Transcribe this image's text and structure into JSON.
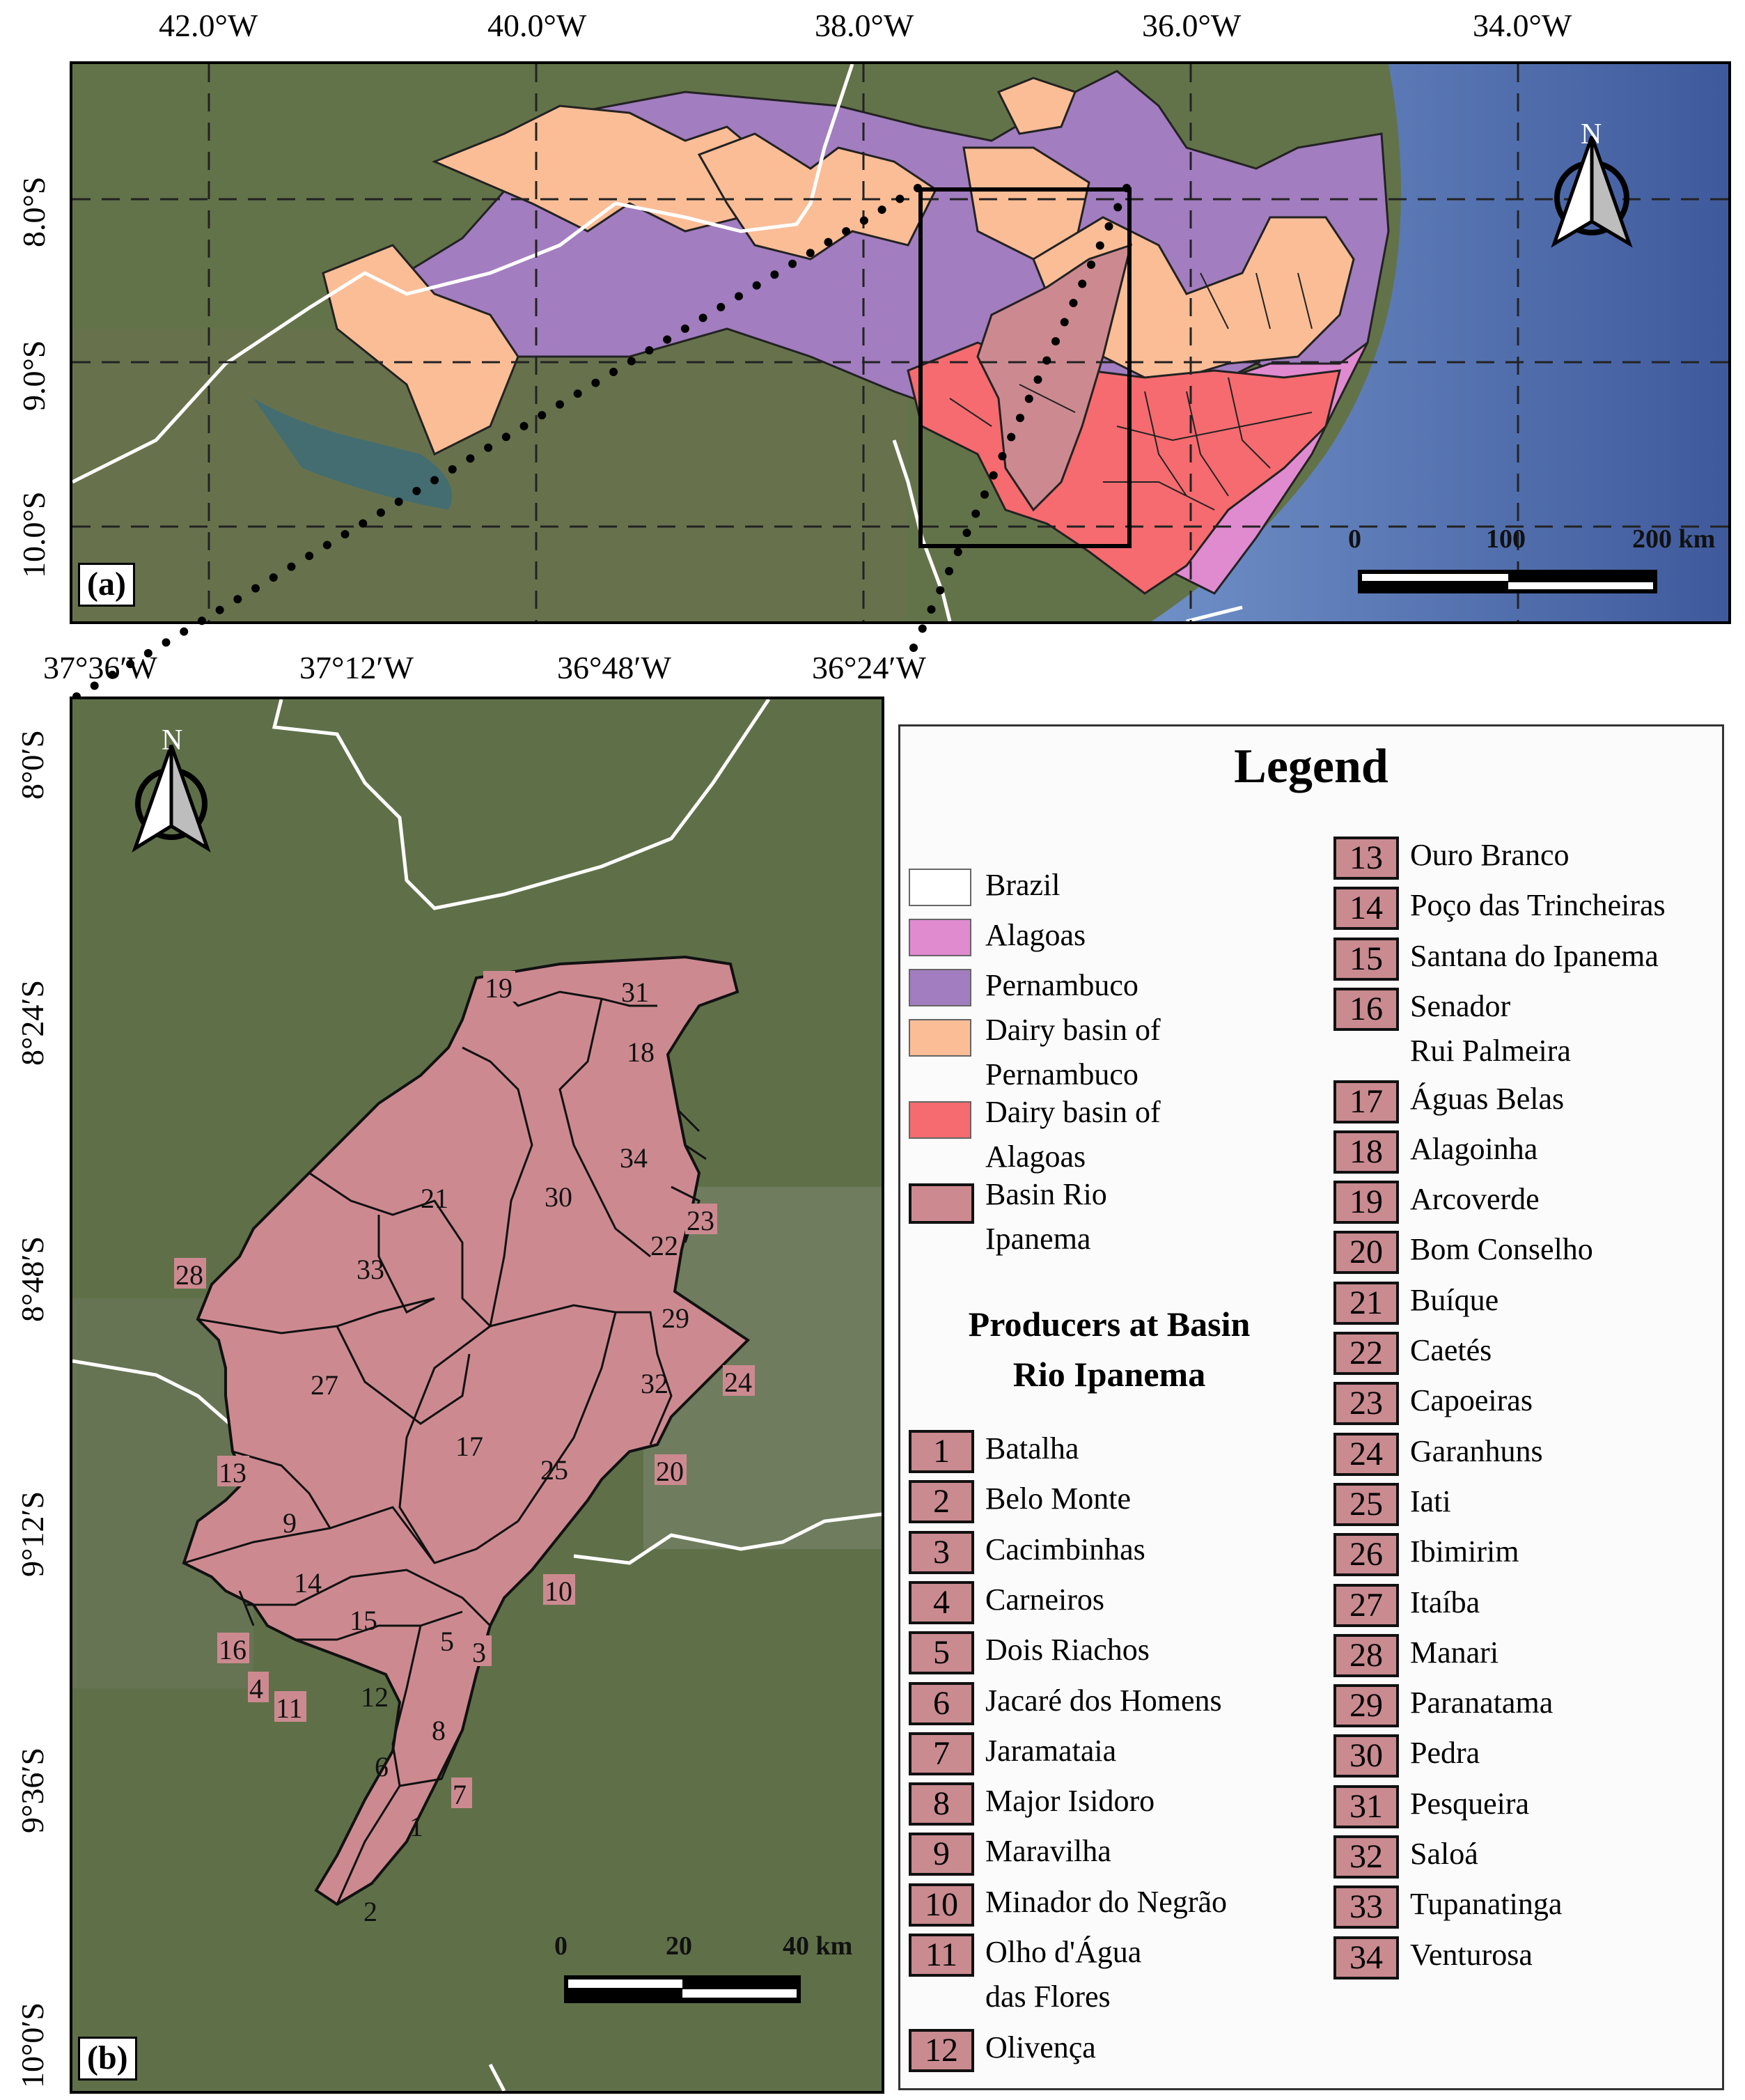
{
  "panel_a": {
    "tag": "(a)",
    "lon_ticks": [
      "42.0°W",
      "40.0°W",
      "38.0°W",
      "36.0°W",
      "34.0°W"
    ],
    "lat_ticks": [
      "8.0°S",
      "9.0°S",
      "10.0°S"
    ],
    "north": "N",
    "scale": {
      "labels": [
        "0",
        "100",
        "200 km"
      ]
    }
  },
  "panel_b": {
    "tag": "(b)",
    "lon_ticks": [
      "37°36′W",
      "37°12′W",
      "36°48′W",
      "36°24′W"
    ],
    "lat_ticks": [
      "8°0′S",
      "8°24′S",
      "8°48′S",
      "9°12′S",
      "9°36′S",
      "10°0′S"
    ],
    "north": "N",
    "scale": {
      "labels": [
        "0",
        "20",
        "40 km"
      ]
    },
    "region_numbers": [
      "19",
      "31",
      "18",
      "34",
      "21",
      "30",
      "23",
      "22",
      "33",
      "28",
      "29",
      "27",
      "32",
      "24",
      "17",
      "25",
      "20",
      "13",
      "9",
      "14",
      "15",
      "10",
      "16",
      "5",
      "3",
      "4",
      "11",
      "12",
      "8",
      "6",
      "7",
      "1",
      "2"
    ]
  },
  "legend": {
    "title": "Legend",
    "layers": [
      {
        "label": "Brazil",
        "color": "#ffffff"
      },
      {
        "label": "Alagoas",
        "color": "#e08ad0"
      },
      {
        "label": "Pernambuco",
        "color": "#a27dbf"
      },
      {
        "label": "Dairy basin of",
        "label2": "Pernambuco",
        "color": "#fbbd96"
      },
      {
        "label": "Dairy basin of",
        "label2": "Alagoas",
        "color": "#f56b6f"
      },
      {
        "label": "Basin Rio",
        "label2": "Ipanema",
        "color": "#cc8a90"
      }
    ],
    "producers_title_1": "Producers at Basin",
    "producers_title_2": "Rio Ipanema",
    "producers": [
      {
        "n": "1",
        "name": "Batalha"
      },
      {
        "n": "2",
        "name": "Belo Monte"
      },
      {
        "n": "3",
        "name": "Cacimbinhas"
      },
      {
        "n": "4",
        "name": "Carneiros"
      },
      {
        "n": "5",
        "name": "Dois Riachos"
      },
      {
        "n": "6",
        "name": "Jacaré dos Homens"
      },
      {
        "n": "7",
        "name": "Jaramataia"
      },
      {
        "n": "8",
        "name": "Major Isidoro"
      },
      {
        "n": "9",
        "name": "Maravilha"
      },
      {
        "n": "10",
        "name": "Minador do Negrão"
      },
      {
        "n": "11",
        "name": "Olho d'Água",
        "name2": "das Flores"
      },
      {
        "n": "12",
        "name": "Olivença"
      },
      {
        "n": "13",
        "name": "Ouro Branco"
      },
      {
        "n": "14",
        "name": "Poço das Trincheiras"
      },
      {
        "n": "15",
        "name": "Santana do Ipanema"
      },
      {
        "n": "16",
        "name": "Senador",
        "name2": "Rui Palmeira"
      },
      {
        "n": "17",
        "name": "Águas Belas"
      },
      {
        "n": "18",
        "name": "Alagoinha"
      },
      {
        "n": "19",
        "name": "Arcoverde"
      },
      {
        "n": "20",
        "name": "Bom Conselho"
      },
      {
        "n": "21",
        "name": "Buíque"
      },
      {
        "n": "22",
        "name": "Caetés"
      },
      {
        "n": "23",
        "name": "Capoeiras"
      },
      {
        "n": "24",
        "name": "Garanhuns"
      },
      {
        "n": "25",
        "name": "Iati"
      },
      {
        "n": "26",
        "name": "Ibimirim"
      },
      {
        "n": "27",
        "name": "Itaíba"
      },
      {
        "n": "28",
        "name": "Manari"
      },
      {
        "n": "29",
        "name": "Paranatama"
      },
      {
        "n": "30",
        "name": "Pedra"
      },
      {
        "n": "31",
        "name": "Pesqueira"
      },
      {
        "n": "32",
        "name": "Saloá"
      },
      {
        "n": "33",
        "name": "Tupanatinga"
      },
      {
        "n": "34",
        "name": "Venturosa"
      }
    ]
  }
}
